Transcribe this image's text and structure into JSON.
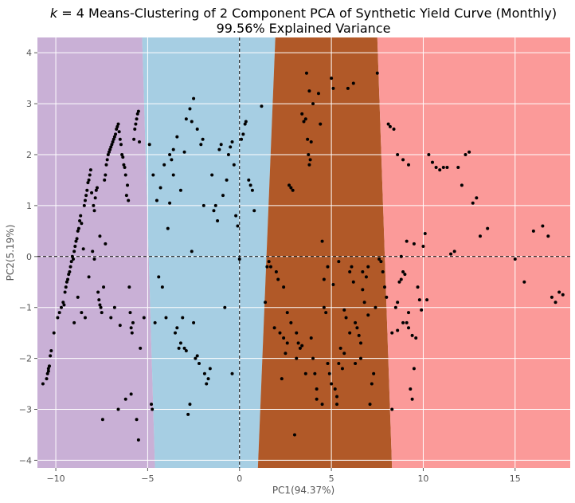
{
  "chart_data": {
    "type": "scatter",
    "title_line1": "k = 4 Means-Clustering of 2 Component PCA of Synthetic Yield Curve (Monthly)",
    "title_line2": "99.56% Explained Variance",
    "xlabel": "PC1(94.37%)",
    "ylabel": "PC2(5.19%)",
    "xlim": [
      -11,
      18
    ],
    "ylim": [
      -4.15,
      4.3
    ],
    "xticks": [
      -10,
      -5,
      0,
      5,
      10,
      15
    ],
    "yticks": [
      -4,
      -3,
      -2,
      -1,
      0,
      1,
      2,
      3,
      4
    ],
    "grid": true,
    "colors": {
      "background": "#ebebeb",
      "cluster_purple": "#c9b0d6",
      "cluster_blue": "#a6cee3",
      "cluster_brown": "#b15928",
      "cluster_pink": "#fb9a99",
      "points": "#000000",
      "reference_lines": "#000000"
    },
    "reference_lines": {
      "x": 0,
      "y": 0
    },
    "regions": [
      {
        "name": "cluster-1",
        "color": "#c9b0d6",
        "bottom": -11,
        "top": -11
      },
      {
        "name": "cluster-2",
        "color": "#a6cee3",
        "bottom": -4.6,
        "top": -5.3
      },
      {
        "name": "cluster-3",
        "color": "#b15928",
        "bottom": 1.0,
        "top": 1.95
      },
      {
        "name": "cluster-4",
        "color": "#fb9a99",
        "bottom": 8.3,
        "top": 7.5
      }
    ],
    "points": [
      [
        -10.7,
        -2.5
      ],
      [
        -10.5,
        -2.4
      ],
      [
        -10.45,
        -2.3
      ],
      [
        -10.4,
        -2.25
      ],
      [
        -10.4,
        -2.2
      ],
      [
        -10.35,
        -2.15
      ],
      [
        -10.3,
        -1.95
      ],
      [
        -10.25,
        -1.85
      ],
      [
        -10.1,
        -1.5
      ],
      [
        -9.9,
        -1.2
      ],
      [
        -9.8,
        -1.1
      ],
      [
        -9.7,
        -1.0
      ],
      [
        -9.6,
        -0.9
      ],
      [
        -9.55,
        -0.95
      ],
      [
        -9.5,
        -0.7
      ],
      [
        -9.45,
        -0.6
      ],
      [
        -9.4,
        -0.5
      ],
      [
        -9.35,
        -0.45
      ],
      [
        -9.3,
        -0.35
      ],
      [
        -9.25,
        -0.3
      ],
      [
        -9.2,
        -0.2
      ],
      [
        -9.15,
        -0.1
      ],
      [
        -9.1,
        0.0
      ],
      [
        -9.05,
        -0.05
      ],
      [
        -9.0,
        0.1
      ],
      [
        -8.95,
        0.2
      ],
      [
        -8.9,
        0.3
      ],
      [
        -8.85,
        0.35
      ],
      [
        -8.8,
        0.5
      ],
      [
        -8.75,
        0.55
      ],
      [
        -8.7,
        0.7
      ],
      [
        -8.65,
        0.8
      ],
      [
        -8.6,
        0.65
      ],
      [
        -8.5,
        0.15
      ],
      [
        -8.45,
        1.0
      ],
      [
        -8.4,
        1.1
      ],
      [
        -8.35,
        1.2
      ],
      [
        -8.3,
        1.3
      ],
      [
        -8.25,
        1.45
      ],
      [
        -8.2,
        1.5
      ],
      [
        -8.15,
        1.6
      ],
      [
        -8.1,
        1.7
      ],
      [
        -8.05,
        1.25
      ],
      [
        -8.0,
        0.1
      ],
      [
        -7.95,
        1.0
      ],
      [
        -7.9,
        0.9
      ],
      [
        -7.85,
        1.15
      ],
      [
        -7.8,
        1.3
      ],
      [
        -7.75,
        1.35
      ],
      [
        -7.7,
        -0.7
      ],
      [
        -7.65,
        -0.85
      ],
      [
        -7.6,
        -0.95
      ],
      [
        -7.55,
        -1.0
      ],
      [
        -7.5,
        -1.1
      ],
      [
        -7.45,
        -3.2
      ],
      [
        -7.4,
        -0.6
      ],
      [
        -7.35,
        1.5
      ],
      [
        -7.3,
        1.6
      ],
      [
        -7.25,
        1.8
      ],
      [
        -7.2,
        1.9
      ],
      [
        -7.15,
        2.0
      ],
      [
        -7.1,
        2.05
      ],
      [
        -7.05,
        2.1
      ],
      [
        -7.0,
        2.15
      ],
      [
        -6.95,
        2.2
      ],
      [
        -6.9,
        2.25
      ],
      [
        -6.85,
        2.3
      ],
      [
        -6.8,
        2.35
      ],
      [
        -6.75,
        2.4
      ],
      [
        -6.7,
        2.5
      ],
      [
        -6.65,
        2.55
      ],
      [
        -6.6,
        2.6
      ],
      [
        -6.55,
        2.45
      ],
      [
        -6.5,
        2.3
      ],
      [
        -6.45,
        2.2
      ],
      [
        -6.4,
        2.0
      ],
      [
        -6.35,
        1.95
      ],
      [
        -6.3,
        1.8
      ],
      [
        -6.25,
        1.75
      ],
      [
        -6.2,
        1.6
      ],
      [
        -6.15,
        1.2
      ],
      [
        -6.1,
        1.4
      ],
      [
        -6.05,
        1.1
      ],
      [
        -6.0,
        -0.6
      ],
      [
        -5.95,
        -1.1
      ],
      [
        -5.9,
        -1.4
      ],
      [
        -5.85,
        -1.5
      ],
      [
        -5.8,
        -1.3
      ],
      [
        -5.75,
        2.3
      ],
      [
        -5.7,
        2.5
      ],
      [
        -5.65,
        2.6
      ],
      [
        -5.6,
        2.7
      ],
      [
        -5.55,
        2.8
      ],
      [
        -5.5,
        2.85
      ],
      [
        -5.45,
        2.25
      ],
      [
        -5.4,
        -1.8
      ],
      [
        -6.6,
        -3.0
      ],
      [
        -6.2,
        -2.8
      ],
      [
        -5.9,
        -2.7
      ],
      [
        -5.5,
        -3.6
      ],
      [
        -5.6,
        -3.2
      ],
      [
        -7.0,
        -1.2
      ],
      [
        -6.8,
        -1.0
      ],
      [
        -6.5,
        -1.35
      ],
      [
        -9.0,
        -1.3
      ],
      [
        -8.6,
        -1.1
      ],
      [
        -8.4,
        -1.2
      ],
      [
        -8.8,
        -0.8
      ],
      [
        -8.2,
        -0.4
      ],
      [
        -7.9,
        -0.05
      ],
      [
        -7.6,
        0.4
      ],
      [
        -7.3,
        0.25
      ],
      [
        -5.2,
        -1.2
      ],
      [
        -4.8,
        -2.9
      ],
      [
        -4.75,
        -3.0
      ],
      [
        -4.6,
        -1.3
      ],
      [
        -4.5,
        1.1
      ],
      [
        -4.4,
        -0.4
      ],
      [
        -4.2,
        -0.6
      ],
      [
        -4.0,
        -1.2
      ],
      [
        -3.9,
        0.55
      ],
      [
        -3.8,
        2.0
      ],
      [
        -3.7,
        1.9
      ],
      [
        -3.6,
        2.1
      ],
      [
        -3.5,
        -1.5
      ],
      [
        -3.4,
        -1.4
      ],
      [
        -3.3,
        -1.8
      ],
      [
        -3.2,
        -1.7
      ],
      [
        -3.1,
        -1.2
      ],
      [
        -3.0,
        -1.8
      ],
      [
        -2.9,
        -1.85
      ],
      [
        -2.8,
        -3.1
      ],
      [
        -2.7,
        -2.9
      ],
      [
        -2.6,
        0.1
      ],
      [
        -2.5,
        -1.3
      ],
      [
        -2.4,
        -2.0
      ],
      [
        -2.3,
        -1.95
      ],
      [
        -2.2,
        -2.1
      ],
      [
        -2.1,
        2.2
      ],
      [
        -2.0,
        2.3
      ],
      [
        -1.9,
        -2.3
      ],
      [
        -1.8,
        -2.5
      ],
      [
        -1.7,
        -2.4
      ],
      [
        -1.6,
        -2.2
      ],
      [
        -1.5,
        1.6
      ],
      [
        -1.4,
        0.9
      ],
      [
        -1.3,
        1.0
      ],
      [
        -1.2,
        0.7
      ],
      [
        -1.1,
        2.1
      ],
      [
        -1.0,
        2.2
      ],
      [
        -0.9,
        1.2
      ],
      [
        -0.8,
        -1.0
      ],
      [
        -0.7,
        1.5
      ],
      [
        -0.6,
        2.0
      ],
      [
        -0.5,
        2.15
      ],
      [
        -0.4,
        2.25
      ],
      [
        -0.3,
        1.8
      ],
      [
        -0.2,
        0.8
      ],
      [
        -0.1,
        0.6
      ],
      [
        0.0,
        -0.05
      ],
      [
        0.1,
        2.3
      ],
      [
        0.2,
        2.4
      ],
      [
        0.3,
        2.6
      ],
      [
        0.35,
        2.65
      ],
      [
        0.5,
        1.5
      ],
      [
        0.6,
        1.4
      ],
      [
        0.7,
        1.3
      ],
      [
        0.8,
        0.9
      ],
      [
        -3.8,
        1.05
      ],
      [
        -3.6,
        1.6
      ],
      [
        -3.2,
        1.3
      ],
      [
        -2.9,
        2.7
      ],
      [
        -2.7,
        2.9
      ],
      [
        -2.5,
        3.1
      ],
      [
        -2.3,
        2.5
      ],
      [
        -1.95,
        1.0
      ],
      [
        -4.9,
        2.2
      ],
      [
        -4.7,
        1.6
      ],
      [
        -4.3,
        1.35
      ],
      [
        -4.1,
        1.8
      ],
      [
        -3.4,
        2.35
      ],
      [
        -3.0,
        2.05
      ],
      [
        -2.6,
        2.65
      ],
      [
        -0.4,
        -2.3
      ],
      [
        1.2,
        2.95
      ],
      [
        1.4,
        -0.9
      ],
      [
        1.5,
        -0.2
      ],
      [
        1.6,
        -0.1
      ],
      [
        1.7,
        -0.2
      ],
      [
        1.9,
        -1.4
      ],
      [
        2.0,
        -0.3
      ],
      [
        2.1,
        -0.45
      ],
      [
        2.2,
        -1.5
      ],
      [
        2.3,
        -2.4
      ],
      [
        2.4,
        -1.6
      ],
      [
        2.5,
        -1.9
      ],
      [
        2.6,
        -1.7
      ],
      [
        2.7,
        1.4
      ],
      [
        2.8,
        1.35
      ],
      [
        2.9,
        1.3
      ],
      [
        3.0,
        -3.5
      ],
      [
        3.1,
        -2.0
      ],
      [
        3.2,
        -1.7
      ],
      [
        3.3,
        -1.8
      ],
      [
        3.4,
        -1.75
      ],
      [
        3.5,
        2.65
      ],
      [
        3.6,
        2.7
      ],
      [
        3.65,
        3.6
      ],
      [
        3.7,
        2.3
      ],
      [
        3.75,
        2.0
      ],
      [
        3.8,
        1.8
      ],
      [
        3.85,
        1.9
      ],
      [
        3.9,
        2.25
      ],
      [
        4.0,
        -2.0
      ],
      [
        4.1,
        -2.3
      ],
      [
        4.2,
        -2.6
      ],
      [
        4.3,
        3.2
      ],
      [
        4.4,
        2.6
      ],
      [
        4.5,
        0.3
      ],
      [
        4.6,
        -1.0
      ],
      [
        4.7,
        -1.1
      ],
      [
        4.8,
        -2.1
      ],
      [
        4.9,
        -2.3
      ],
      [
        5.0,
        -2.5
      ],
      [
        5.1,
        3.3
      ],
      [
        5.2,
        -2.6
      ],
      [
        5.3,
        -2.75
      ],
      [
        5.4,
        -2.1
      ],
      [
        5.5,
        -1.8
      ],
      [
        5.6,
        -2.2
      ],
      [
        5.7,
        -1.9
      ],
      [
        5.8,
        -1.2
      ],
      [
        5.9,
        3.3
      ],
      [
        6.0,
        -0.3
      ],
      [
        6.1,
        -0.2
      ],
      [
        6.2,
        -0.5
      ],
      [
        6.3,
        -1.3
      ],
      [
        6.4,
        -1.4
      ],
      [
        6.5,
        -1.55
      ],
      [
        6.6,
        -1.7
      ],
      [
        6.7,
        -0.3
      ],
      [
        6.8,
        -0.9
      ],
      [
        6.9,
        -0.4
      ],
      [
        7.0,
        -0.2
      ],
      [
        7.1,
        -2.9
      ],
      [
        7.2,
        -2.5
      ],
      [
        7.3,
        -2.3
      ],
      [
        7.4,
        -1.0
      ],
      [
        7.5,
        3.6
      ],
      [
        7.6,
        -0.05
      ],
      [
        7.7,
        -0.1
      ],
      [
        7.8,
        -0.3
      ],
      [
        7.9,
        -0.6
      ],
      [
        8.0,
        -0.8
      ],
      [
        8.1,
        2.6
      ],
      [
        8.2,
        2.55
      ],
      [
        4.6,
        -0.45
      ],
      [
        4.8,
        -0.2
      ],
      [
        5.1,
        -0.55
      ],
      [
        5.4,
        -0.1
      ],
      [
        5.7,
        -1.05
      ],
      [
        6.0,
        -1.5
      ],
      [
        6.3,
        -2.1
      ],
      [
        6.6,
        -2.0
      ],
      [
        2.4,
        -0.6
      ],
      [
        2.6,
        -1.1
      ],
      [
        2.8,
        -1.3
      ],
      [
        3.1,
        -1.5
      ],
      [
        3.6,
        -2.3
      ],
      [
        3.9,
        -1.6
      ],
      [
        4.2,
        -2.8
      ],
      [
        4.5,
        -2.9
      ],
      [
        5.0,
        3.5
      ],
      [
        5.3,
        -2.9
      ],
      [
        6.2,
        3.4
      ],
      [
        6.7,
        -0.65
      ],
      [
        7.0,
        -1.15
      ],
      [
        3.4,
        2.8
      ],
      [
        3.8,
        3.25
      ],
      [
        4.0,
        3.0
      ],
      [
        8.3,
        -3.0
      ],
      [
        8.4,
        2.5
      ],
      [
        8.5,
        -1.0
      ],
      [
        8.6,
        -0.9
      ],
      [
        8.7,
        -0.5
      ],
      [
        8.8,
        -0.45
      ],
      [
        8.9,
        -0.3
      ],
      [
        9.0,
        -0.35
      ],
      [
        9.1,
        -1.3
      ],
      [
        9.2,
        -1.4
      ],
      [
        9.3,
        -2.6
      ],
      [
        9.4,
        -2.8
      ],
      [
        9.5,
        -2.2
      ],
      [
        9.6,
        -1.6
      ],
      [
        9.7,
        -0.6
      ],
      [
        9.8,
        -0.85
      ],
      [
        9.9,
        -1.05
      ],
      [
        10.0,
        0.2
      ],
      [
        10.1,
        0.45
      ],
      [
        10.2,
        -0.85
      ],
      [
        10.3,
        2.0
      ],
      [
        10.5,
        1.85
      ],
      [
        10.7,
        1.75
      ],
      [
        10.9,
        1.7
      ],
      [
        11.1,
        1.75
      ],
      [
        11.3,
        1.75
      ],
      [
        11.5,
        0.05
      ],
      [
        11.7,
        0.1
      ],
      [
        11.9,
        1.75
      ],
      [
        12.1,
        1.4
      ],
      [
        12.3,
        2.0
      ],
      [
        12.5,
        2.05
      ],
      [
        12.7,
        1.05
      ],
      [
        12.9,
        1.15
      ],
      [
        13.1,
        0.4
      ],
      [
        13.5,
        0.55
      ],
      [
        15.0,
        -0.05
      ],
      [
        15.5,
        -0.5
      ],
      [
        16.0,
        0.5
      ],
      [
        16.5,
        0.6
      ],
      [
        16.8,
        0.4
      ],
      [
        17.0,
        -0.8
      ],
      [
        17.2,
        -0.9
      ],
      [
        17.4,
        -0.7
      ],
      [
        17.6,
        -0.75
      ],
      [
        8.3,
        -1.5
      ],
      [
        8.6,
        -1.45
      ],
      [
        8.9,
        -1.3
      ],
      [
        9.2,
        -1.1
      ],
      [
        9.4,
        -1.55
      ],
      [
        9.1,
        0.3
      ],
      [
        8.8,
        0.0
      ],
      [
        8.6,
        2.0
      ],
      [
        8.9,
        1.9
      ],
      [
        9.2,
        1.8
      ],
      [
        9.5,
        0.25
      ]
    ]
  }
}
